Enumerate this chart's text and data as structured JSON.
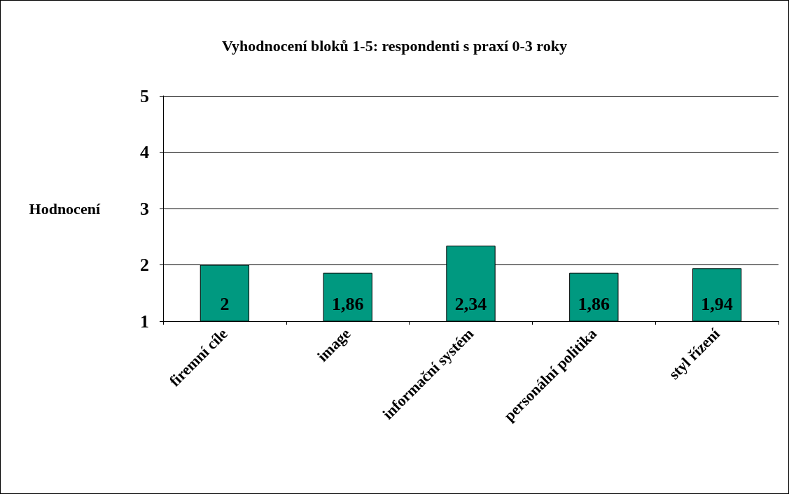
{
  "chart_data": {
    "type": "bar",
    "title": "Vyhodnocení bloků 1-5: respondenti s praxí 0-3 roky",
    "ylabel": "Hodnocení",
    "categories": [
      "firemní cíle",
      "image",
      "informační systém",
      "personální politika",
      "styl řízení"
    ],
    "values": [
      2,
      1.86,
      2.34,
      1.86,
      1.94
    ],
    "color": "#009980",
    "value_labels": [
      "2",
      "1,86",
      "2,34",
      "1,86",
      "1,94"
    ],
    "ylim": [
      1,
      5
    ],
    "yticks": [
      1,
      2,
      3,
      4,
      5
    ],
    "grid": "y"
  }
}
